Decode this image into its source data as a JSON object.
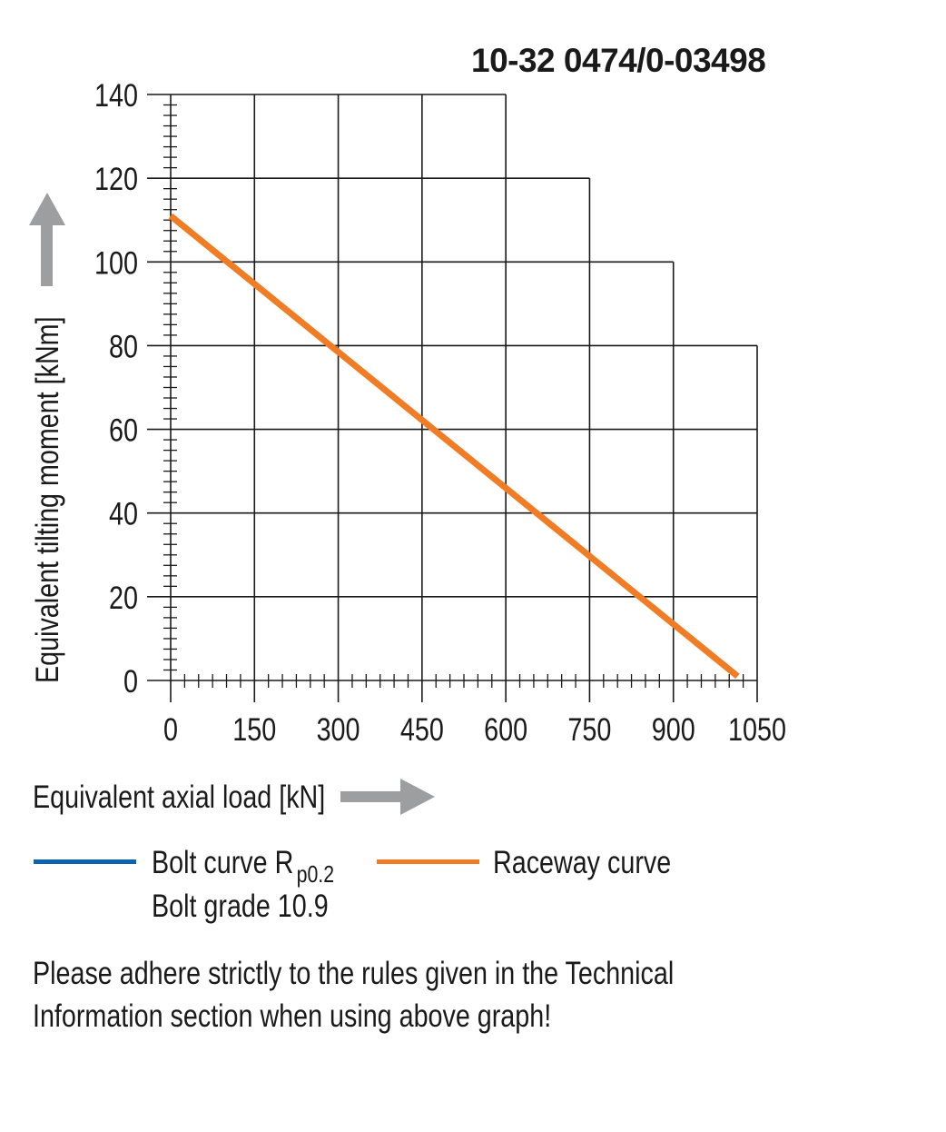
{
  "header": {
    "code": "10-32 0474/0-03498"
  },
  "chart_data": {
    "type": "line",
    "x_axis": {
      "label": "Equivalent axial load [kN]",
      "min": 0,
      "max": 1050,
      "ticks": [
        0,
        150,
        300,
        450,
        600,
        750,
        900,
        1050
      ],
      "tick_labels": [
        "0",
        "150",
        "300",
        "450",
        "600",
        "750",
        "900",
        "1050"
      ],
      "minor_step": 25
    },
    "y_axis": {
      "label": "Equivalent tilting moment [kNm]",
      "min": 0,
      "max": 140,
      "ticks": [
        0,
        20,
        40,
        60,
        80,
        100,
        120,
        140
      ],
      "tick_labels": [
        "0",
        "20",
        "40",
        "60",
        "80",
        "100",
        "120",
        "140"
      ],
      "minor_step": 2.5
    },
    "grid_steps": [
      {
        "x": 450,
        "y": 140
      },
      {
        "x": 600,
        "y": 140
      },
      {
        "x": 750,
        "y": 120
      },
      {
        "x": 900,
        "y": 100
      },
      {
        "x": 1050,
        "y": 80
      }
    ],
    "series": [
      {
        "name": "Raceway curve",
        "color": "#f07d26",
        "x": [
          0,
          1015
        ],
        "y": [
          111,
          1
        ]
      }
    ],
    "legend": {
      "bolt_curve": {
        "label": "Bolt curve  R",
        "subscript": "p0.2",
        "grade": "Bolt grade 10.9",
        "color": "#0c63b0"
      },
      "raceway_curve": {
        "label": "Raceway curve",
        "color": "#f07d26"
      }
    },
    "grid": true,
    "arrow_color": "#9d9ea0"
  },
  "note": {
    "line1": "Please adhere strictly to the rules given in the Technical",
    "line2": "Information section when using above graph!"
  }
}
